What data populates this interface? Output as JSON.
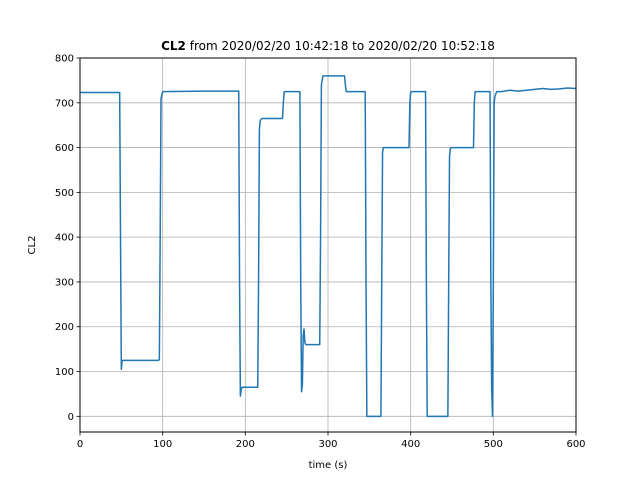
{
  "chart_data": {
    "type": "line",
    "title_bold": "CL2",
    "title_rest": " from 2020/02/20 10:42:18 to 2020/02/20 10:52:18",
    "xlabel": "time (s)",
    "ylabel": "CL2",
    "xlim": [
      0,
      600
    ],
    "ylim": [
      -35,
      800
    ],
    "xticks": [
      0,
      100,
      200,
      300,
      400,
      500,
      600
    ],
    "yticks": [
      0,
      100,
      200,
      300,
      400,
      500,
      600,
      700,
      800
    ],
    "grid": true,
    "line_color": "#1f77b4",
    "series": [
      {
        "x": [
          0,
          48,
          49,
          50,
          51,
          95,
          96,
          97,
          98,
          100,
          150,
          192,
          193,
          194,
          195,
          196,
          215,
          216,
          217,
          218,
          219,
          220,
          225,
          245,
          246,
          247,
          248,
          266,
          267,
          268,
          269,
          270,
          271,
          272,
          273,
          274,
          275,
          276,
          277,
          278,
          290,
          291,
          292,
          293,
          294,
          296,
          300,
          320,
          321,
          322,
          325,
          345,
          346,
          347,
          348,
          350,
          364,
          365,
          366,
          367,
          368,
          372,
          398,
          399,
          400,
          401,
          402,
          418,
          419,
          420,
          421,
          422,
          445,
          446,
          447,
          448,
          449,
          450,
          476,
          477,
          478,
          479,
          495,
          496,
          497,
          498,
          499,
          500,
          501,
          502,
          503,
          504,
          505,
          510,
          520,
          530,
          540,
          550,
          560,
          570,
          580,
          590,
          600
        ],
        "y": [
          723,
          723,
          400,
          105,
          125,
          125,
          127,
          400,
          710,
          725,
          726,
          726,
          300,
          45,
          60,
          65,
          65,
          300,
          640,
          660,
          663,
          665,
          665,
          665,
          700,
          725,
          725,
          725,
          300,
          55,
          70,
          180,
          195,
          165,
          160,
          160,
          160,
          160,
          160,
          160,
          160,
          400,
          740,
          750,
          760,
          760,
          760,
          760,
          740,
          725,
          725,
          725,
          300,
          0,
          0,
          0,
          0,
          300,
          590,
          600,
          600,
          600,
          600,
          700,
          724,
          725,
          725,
          725,
          300,
          0,
          0,
          0,
          0,
          300,
          580,
          598,
          600,
          600,
          600,
          700,
          725,
          725,
          725,
          725,
          300,
          60,
          0,
          300,
          700,
          715,
          720,
          725,
          725,
          725,
          728,
          726,
          728,
          730,
          732,
          730,
          731,
          733,
          732
        ]
      }
    ]
  }
}
